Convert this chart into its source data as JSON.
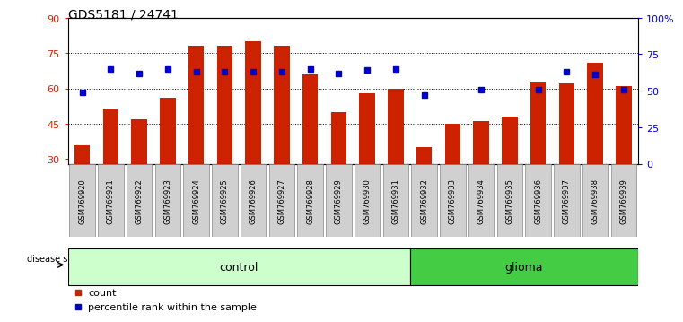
{
  "title": "GDS5181 / 24741",
  "samples": [
    "GSM769920",
    "GSM769921",
    "GSM769922",
    "GSM769923",
    "GSM769924",
    "GSM769925",
    "GSM769926",
    "GSM769927",
    "GSM769928",
    "GSM769929",
    "GSM769930",
    "GSM769931",
    "GSM769932",
    "GSM769933",
    "GSM769934",
    "GSM769935",
    "GSM769936",
    "GSM769937",
    "GSM769938",
    "GSM769939"
  ],
  "bar_heights": [
    36,
    51,
    47,
    56,
    78,
    78,
    80,
    78,
    66,
    50,
    58,
    60,
    35,
    45,
    46,
    48,
    63,
    62,
    71,
    61
  ],
  "percentile_ranks": [
    49,
    65,
    62,
    65,
    63,
    63,
    63,
    63,
    65,
    62,
    64,
    65,
    47,
    null,
    51,
    null,
    51,
    63,
    61,
    51
  ],
  "control_count": 12,
  "glioma_count": 8,
  "bar_color": "#cc2200",
  "dot_color": "#0000cc",
  "ylim_left": [
    28,
    90
  ],
  "ylim_right": [
    0,
    100
  ],
  "yticks_left": [
    30,
    45,
    60,
    75,
    90
  ],
  "yticks_right": [
    0,
    25,
    50,
    75,
    100
  ],
  "ytick_labels_left": [
    "30",
    "45",
    "60",
    "75",
    "90"
  ],
  "ytick_labels_right": [
    "0",
    "25",
    "50",
    "75",
    "100%"
  ],
  "control_color": "#ccffcc",
  "glioma_color": "#44cc44",
  "xtick_bg_color": "#d0d0d0",
  "legend_count_label": "count",
  "legend_pct_label": "percentile rank within the sample",
  "disease_state_label": "disease state",
  "control_label": "control",
  "glioma_label": "glioma"
}
